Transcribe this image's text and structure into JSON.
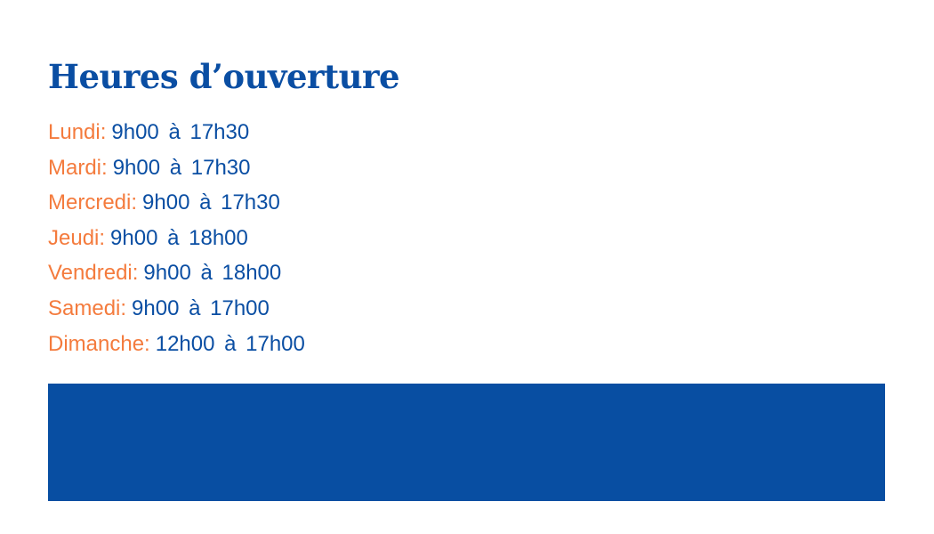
{
  "title": "Heures d’ouverture",
  "hours": [
    {
      "day": "Lundi:",
      "time": "9h00 à 17h30"
    },
    {
      "day": "Mardi:",
      "time": "9h00 à 17h30"
    },
    {
      "day": "Mercredi:",
      "time": "9h00 à 17h30"
    },
    {
      "day": "Jeudi:",
      "time": "9h00 à 18h00"
    },
    {
      "day": "Vendredi:",
      "time": "9h00 à 18h00"
    },
    {
      "day": "Samedi:",
      "time": "9h00 à 17h00"
    },
    {
      "day": "Dimanche:",
      "time": "12h00 à 17h00"
    }
  ],
  "colors": {
    "blue": "#0a4ea3",
    "orange": "#f47b3d",
    "bar": "#084ea2"
  }
}
